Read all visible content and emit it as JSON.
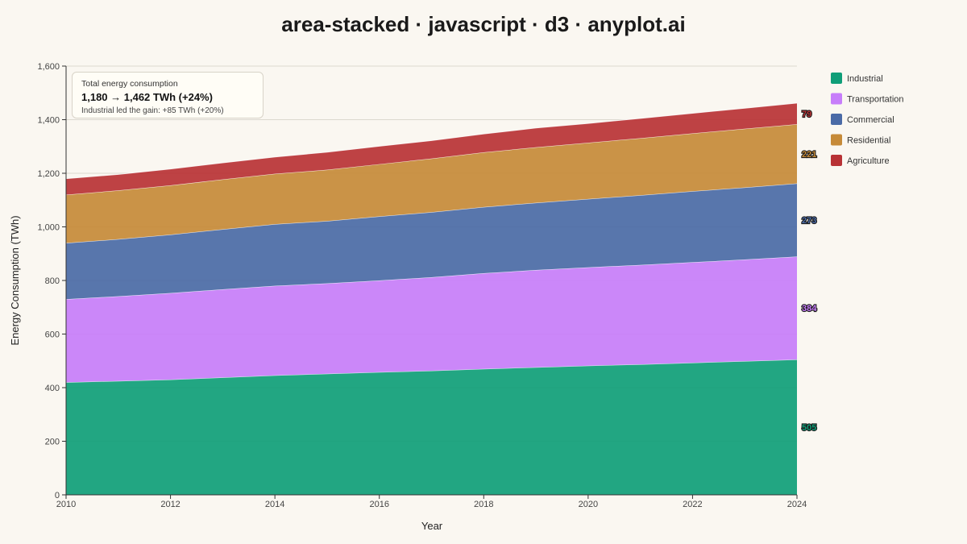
{
  "chart_data": {
    "type": "area",
    "stacked": true,
    "title": "area-stacked · javascript · d3 · anyplot.ai",
    "xlabel": "Year",
    "ylabel": "Energy Consumption (TWh)",
    "x": [
      2010,
      2011,
      2012,
      2013,
      2014,
      2015,
      2016,
      2017,
      2018,
      2019,
      2020,
      2021,
      2022,
      2023,
      2024
    ],
    "xlim": [
      2010,
      2024
    ],
    "ylim": [
      0,
      1600
    ],
    "x_ticks": [
      "2010",
      "2012",
      "2014",
      "2016",
      "2018",
      "2020",
      "2022",
      "2024"
    ],
    "x_tick_values": [
      2010,
      2012,
      2014,
      2016,
      2018,
      2020,
      2022,
      2024
    ],
    "y_ticks": [
      "0",
      "200",
      "400",
      "600",
      "800",
      "1,000",
      "1,200",
      "1,400",
      "1,600"
    ],
    "y_tick_values": [
      0,
      200,
      400,
      600,
      800,
      1000,
      1200,
      1400,
      1600
    ],
    "grid": "horizontal",
    "legend_position": "right",
    "series": [
      {
        "name": "Industrial",
        "color": "#0f9e78",
        "end_label": "505",
        "values": [
          420,
          425,
          430,
          438,
          446,
          452,
          458,
          463,
          470,
          476,
          482,
          487,
          493,
          499,
          505
        ]
      },
      {
        "name": "Transportation",
        "color": "#c77dfa",
        "end_label": "384",
        "values": [
          310,
          316,
          323,
          329,
          334,
          337,
          342,
          349,
          357,
          363,
          367,
          371,
          375,
          379,
          384
        ]
      },
      {
        "name": "Commercial",
        "color": "#4a6aa6",
        "end_label": "273",
        "values": [
          210,
          213,
          218,
          224,
          230,
          233,
          239,
          243,
          247,
          251,
          255,
          260,
          265,
          269,
          273
        ]
      },
      {
        "name": "Residential",
        "color": "#c68a38",
        "end_label": "221",
        "values": [
          180,
          182,
          184,
          186,
          188,
          191,
          195,
          200,
          204,
          207,
          210,
          213,
          216,
          219,
          221
        ]
      },
      {
        "name": "Agriculture",
        "color": "#b83235",
        "end_label": "79",
        "values": [
          60,
          60,
          61,
          62,
          63,
          66,
          67,
          67,
          69,
          72,
          72,
          74,
          75,
          77,
          79
        ]
      }
    ],
    "annotation": {
      "heading": "Total energy consumption",
      "main": "1,180 → 1,462 TWh (+24%)",
      "sub": "Industrial led the gain: +85 TWh (+20%)"
    }
  }
}
